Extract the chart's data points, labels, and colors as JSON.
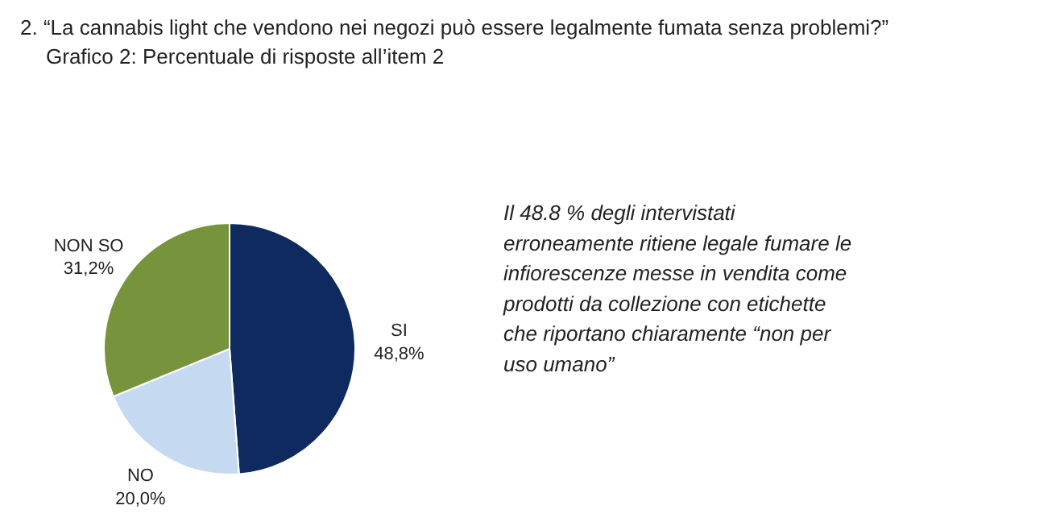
{
  "chart_data": {
    "type": "pie",
    "title": "2.  “La cannabis light che vendono nei negozi può essere legalmente  fumata senza problemi?”",
    "subtitle": "Grafico 2: Percentuale di risposte all’item 2",
    "categories": [
      "SI",
      "NO",
      "NON SO"
    ],
    "values": [
      48.8,
      20.0,
      31.2
    ],
    "colors": [
      "#0e2a5e",
      "#c5d9f1",
      "#77933c"
    ],
    "value_labels": [
      "48,8%",
      "20,0%",
      "31,2%"
    ],
    "annotations": [
      "Il 48.8 % degli intervistati\nerroneamente ritiene legale fumare le\ninfiorescenze messe  in vendita come\nprodotti da collezione con etichette\nche riportano chiaramente “non per\nuso umano”"
    ]
  }
}
